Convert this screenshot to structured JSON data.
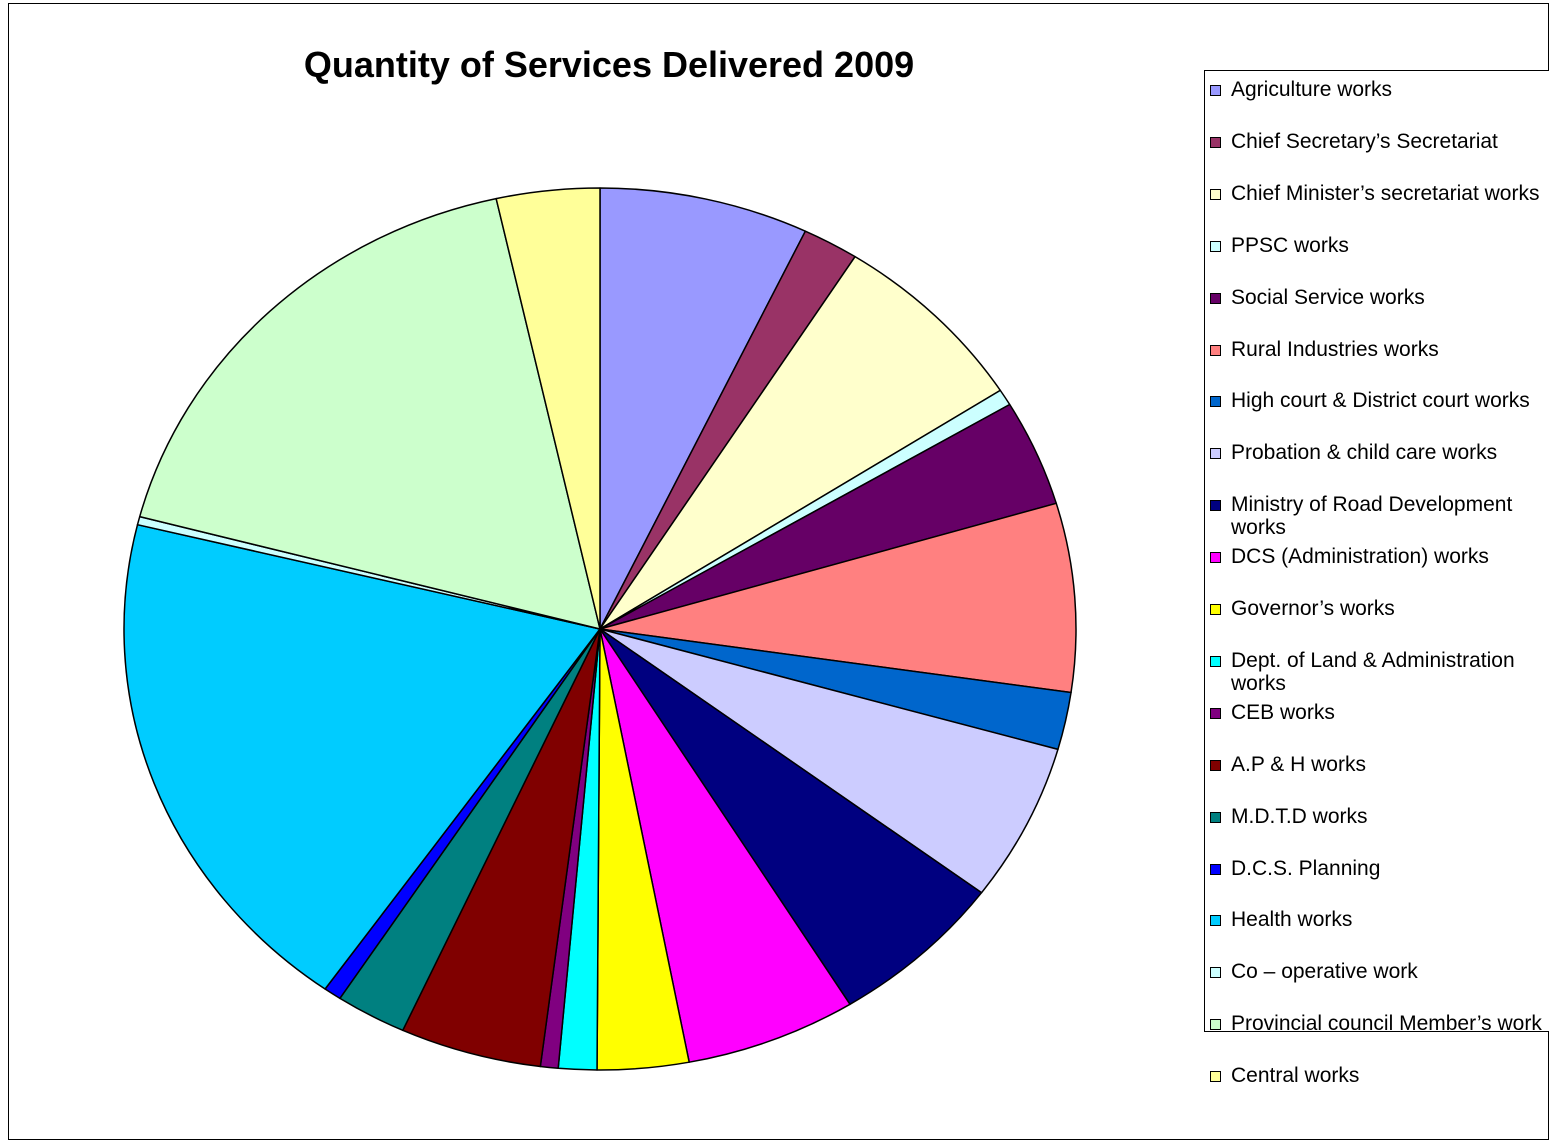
{
  "chart_data": {
    "type": "pie",
    "title": "Quantity of Services Delivered 2009",
    "legend_position": "right",
    "slices": [
      {
        "label": "Agriculture works",
        "value": 7.1,
        "color": "#9999FF"
      },
      {
        "label": "Chief Secretary’s Secretariat",
        "value": 1.9,
        "color": "#993366"
      },
      {
        "label": "Chief Minister’s secretariat works",
        "value": 6.9,
        "color": "#FFFFCC"
      },
      {
        "label": "PPSC works",
        "value": 0.6,
        "color": "#CCFFFF"
      },
      {
        "label": "Social Service works",
        "value": 3.9,
        "color": "#660066"
      },
      {
        "label": "Rural Industries works",
        "value": 6.9,
        "color": "#FF8080"
      },
      {
        "label": "High court & District court works",
        "value": 2.1,
        "color": "#0066CC"
      },
      {
        "label": "Probation & child care works",
        "value": 5.8,
        "color": "#CCCCFF"
      },
      {
        "label": "Ministry of Road Development works",
        "value": 6.0,
        "color": "#000080"
      },
      {
        "label": "DCS (Administration) works",
        "value": 5.8,
        "color": "#FF00FF"
      },
      {
        "label": "Governor’s works",
        "value": 3.1,
        "color": "#FFFF00"
      },
      {
        "label": "Dept. of Land & Administration works",
        "value": 1.3,
        "color": "#00FFFF"
      },
      {
        "label": "CEB works",
        "value": 0.6,
        "color": "#800080"
      },
      {
        "label": "A.P & H  works",
        "value": 4.8,
        "color": "#800000"
      },
      {
        "label": "M.D.T.D works",
        "value": 2.4,
        "color": "#008080"
      },
      {
        "label": "D.C.S. Planning",
        "value": 0.6,
        "color": "#0000FF"
      },
      {
        "label": "Health works",
        "value": 19.0,
        "color": "#00CCFF"
      },
      {
        "label": "Co – operative work",
        "value": 0.3,
        "color": "#CCFFFF"
      },
      {
        "label": "Provincial council Member’s work",
        "value": 17.4,
        "color": "#CCFFCC"
      },
      {
        "label": "Central works",
        "value": 3.5,
        "color": "#FFFF99"
      }
    ]
  }
}
